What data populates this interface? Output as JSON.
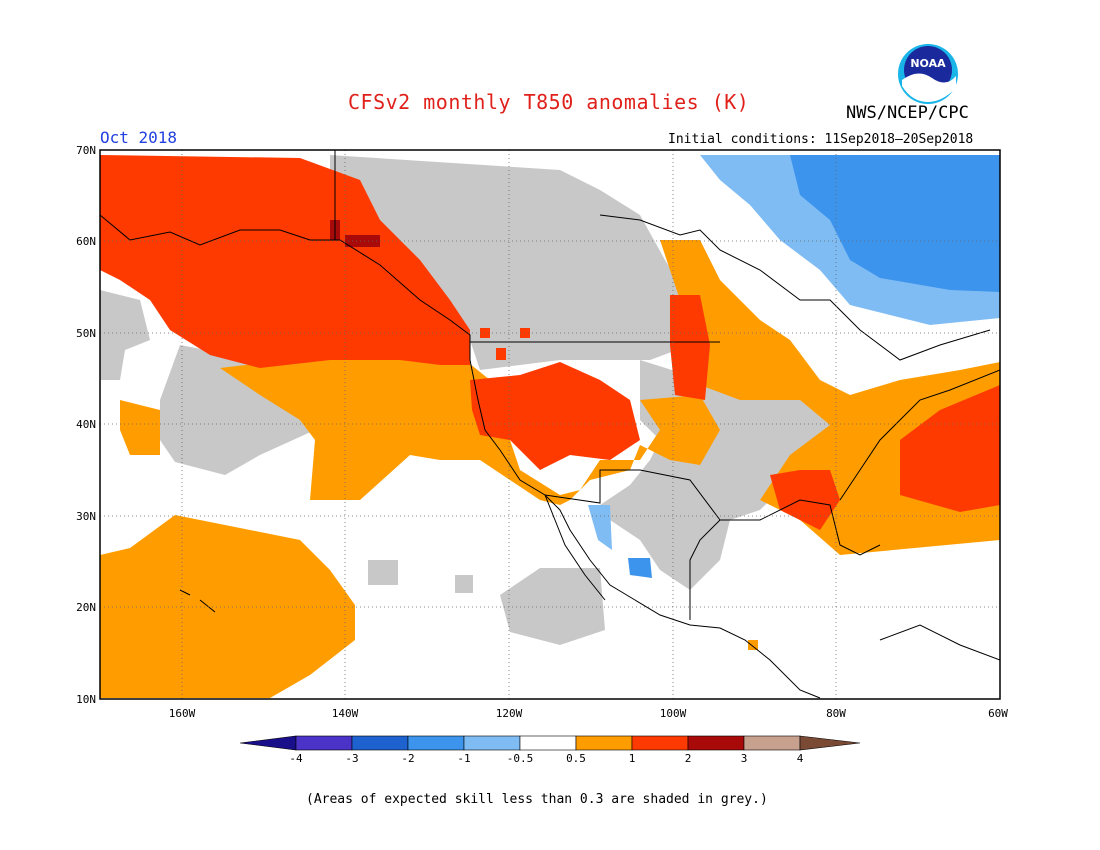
{
  "header": {
    "title": "CFSv2 monthly T850 anomalies (K)",
    "org": "NWS/NCEP/CPC",
    "logo_text": "NOAA",
    "month": "Oct 2018",
    "initial_conditions": "Initial conditions: 11Sep2018–20Sep2018"
  },
  "map": {
    "region": "North America / NE Pacific",
    "lat_labels": [
      "70N",
      "60N",
      "50N",
      "40N",
      "30N",
      "20N",
      "10N"
    ],
    "lon_labels": [
      "160W",
      "140W",
      "120W",
      "100W",
      "80W",
      "60W"
    ],
    "gridlines": "dotted",
    "dominant_features": [
      {
        "area": "Alaska / NE Pacific",
        "category": "1 to 2"
      },
      {
        "area": "Central Pacific north of Hawaii",
        "category": "0.5 to 1"
      },
      {
        "area": "Southwest US / Great Basin",
        "category": "1 to 2"
      },
      {
        "area": "Northeast Canada",
        "category": "-1 to -3"
      },
      {
        "area": "Western North Atlantic",
        "category": "1 to 2"
      },
      {
        "area": "Canadian interior / central US",
        "category": "grey (low skill)"
      }
    ]
  },
  "colorbar": {
    "tick_labels": [
      "-4",
      "-3",
      "-2",
      "-1",
      "-0.5",
      "0.5",
      "1",
      "2",
      "3",
      "4"
    ],
    "colors": {
      "lt_-4": "#1a0f8a",
      "-4_-3": "#4a33c6",
      "-3_-2": "#1e62cf",
      "-2_-1": "#3d94ec",
      "-1_-0.5": "#7fbcf4",
      "-0.5_0.5": "#ffffff",
      "0.5_1": "#ff9d00",
      "1_2": "#ff3a00",
      "2_3": "#a80a0a",
      "3_4": "#c7a08e",
      "gt_4": "#7a4a35",
      "low_skill_grey": "#c8c8c8"
    }
  },
  "footnote": "(Areas of expected skill less than 0.3 are shaded in grey.)"
}
